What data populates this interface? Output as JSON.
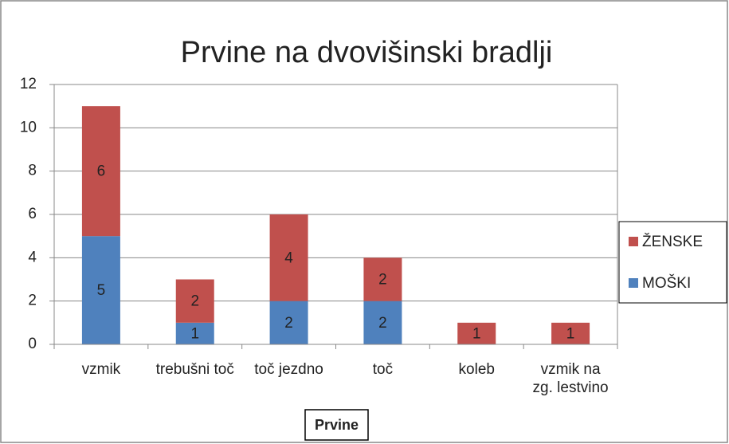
{
  "chart_data": {
    "type": "bar",
    "stacked": true,
    "title": "Prvine na dvovišinski bradlji",
    "x_label": "Prvine",
    "categories": [
      "vzmik",
      "trebušni toč",
      "toč jezdno",
      "toč",
      "koleb",
      "vzmik na zg. lestvino"
    ],
    "series": [
      {
        "name": "MOŠKI",
        "color": "#4f81bd",
        "values": [
          5,
          1,
          2,
          2,
          null,
          null
        ]
      },
      {
        "name": "ŽENSKE",
        "color": "#c0504d",
        "values": [
          6,
          2,
          4,
          2,
          1,
          1
        ]
      }
    ],
    "ylim": [
      0,
      12
    ],
    "yticks": [
      0,
      2,
      4,
      6,
      8,
      10,
      12
    ],
    "grid": true,
    "legend": "right"
  }
}
